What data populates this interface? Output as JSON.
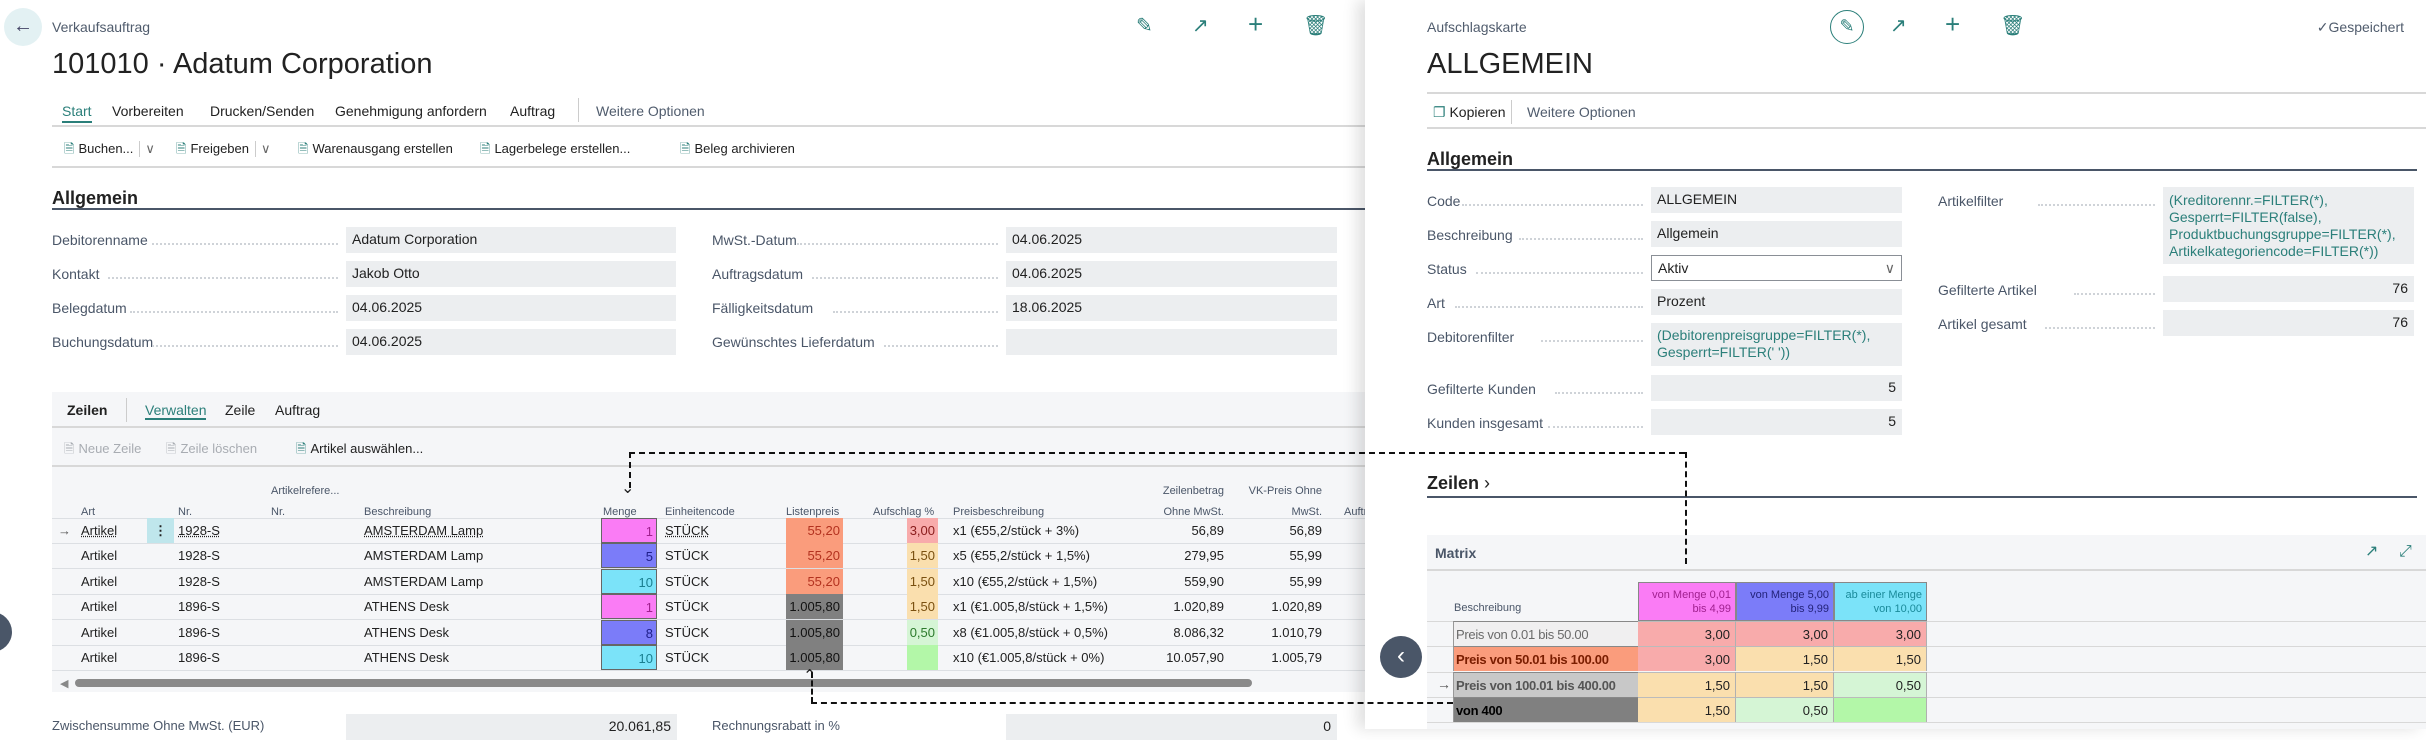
{
  "order": {
    "breadcrumb": "Verkaufsauftrag",
    "title": "101010 · Adatum Corporation",
    "header_icons": [
      "edit-icon",
      "share-icon",
      "add-icon",
      "delete-icon"
    ],
    "tabs": [
      "Start",
      "Vorbereiten",
      "Drucken/Senden",
      "Genehmigung anfordern",
      "Auftrag"
    ],
    "more_options": "Weitere Optionen",
    "actions": [
      "Buchen...",
      "Freigeben",
      "Warenausgang erstellen",
      "Lagerbelege erstellen...",
      "Beleg archivieren"
    ],
    "section": "Allgemein",
    "fields_col1": [
      {
        "label": "Debitorenname",
        "value": "Adatum Corporation"
      },
      {
        "label": "Kontakt",
        "value": "Jakob Otto"
      },
      {
        "label": "Belegdatum",
        "value": "04.06.2025"
      },
      {
        "label": "Buchungsdatum",
        "value": "04.06.2025"
      }
    ],
    "fields_col2": [
      {
        "label": "MwSt.-Datum",
        "value": "04.06.2025"
      },
      {
        "label": "Auftragsdatum",
        "value": "04.06.2025"
      },
      {
        "label": "Fälligkeitsdatum",
        "value": "18.06.2025"
      },
      {
        "label": "Gewünschtes Lieferdatum",
        "value": ""
      }
    ],
    "lines": {
      "title": "Zeilen",
      "tabs": [
        "Verwalten",
        "Zeile",
        "Auftrag"
      ],
      "actions": [
        "Neue Zeile",
        "Zeile löschen",
        "Artikel auswählen..."
      ],
      "headers": {
        "art": "Art",
        "nr": "Nr.",
        "ref1": "Artikelrefere...",
        "ref2": "Nr.",
        "beschreibung": "Beschreibung",
        "menge": "Menge",
        "einheit": "Einheitencode",
        "listenpreis": "Listenpreis",
        "aufschlag": "Aufschlag %",
        "preisbeschreibung": "Preisbeschreibung",
        "zeilenbetrag1": "Zeilenbetrag",
        "zeilenbetrag2": "Ohne MwSt.",
        "vk1": "VK-Preis Ohne",
        "vk2": "MwSt.",
        "auftrag": "Auftrag"
      },
      "rows": [
        {
          "art": "Artikel",
          "nr": "1928-S",
          "beschreibung": "AMSTERDAM Lamp",
          "menge": "1",
          "menge_color": "#fa7cf5",
          "menge_text": "#a0208f",
          "einheit": "STÜCK",
          "listenpreis": "55,20",
          "lp_color": "#fa9c7c",
          "lp_text": "#b3321f",
          "aufschlag": "3,00",
          "af_color": "#f8abab",
          "af_text": "#8a1c1c",
          "preisbeschreibung": "x1 (€55,2/stück + 3%)",
          "zeilenbetrag": "56,89",
          "vkpreis": "56,89",
          "selected": true
        },
        {
          "art": "Artikel",
          "nr": "1928-S",
          "beschreibung": "AMSTERDAM Lamp",
          "menge": "5",
          "menge_color": "#7b7cf9",
          "menge_text": "#1e1e8a",
          "einheit": "STÜCK",
          "listenpreis": "55,20",
          "lp_color": "#fa9c7c",
          "lp_text": "#b3321f",
          "aufschlag": "1,50",
          "af_color": "#fadfae",
          "af_text": "#7a5010",
          "preisbeschreibung": "x5 (€55,2/stück + 1,5%)",
          "zeilenbetrag": "279,95",
          "vkpreis": "55,99"
        },
        {
          "art": "Artikel",
          "nr": "1928-S",
          "beschreibung": "AMSTERDAM Lamp",
          "menge": "10",
          "menge_color": "#7be3f9",
          "menge_text": "#1a7f90",
          "einheit": "STÜCK",
          "listenpreis": "55,20",
          "lp_color": "#fa9c7c",
          "lp_text": "#b3321f",
          "aufschlag": "1,50",
          "af_color": "#fadfae",
          "af_text": "#7a5010",
          "preisbeschreibung": "x10 (€55,2/stück + 1,5%)",
          "zeilenbetrag": "559,90",
          "vkpreis": "55,99"
        },
        {
          "art": "Artikel",
          "nr": "1896-S",
          "beschreibung": "ATHENS Desk",
          "menge": "1",
          "menge_color": "#fa7cf5",
          "menge_text": "#a0208f",
          "einheit": "STÜCK",
          "listenpreis": "1.005,80",
          "lp_color": "#808080",
          "lp_text": "#111111",
          "aufschlag": "1,50",
          "af_color": "#fadfae",
          "af_text": "#7a5010",
          "preisbeschreibung": "x1 (€1.005,8/stück + 1,5%)",
          "zeilenbetrag": "1.020,89",
          "vkpreis": "1.020,89"
        },
        {
          "art": "Artikel",
          "nr": "1896-S",
          "beschreibung": "ATHENS Desk",
          "menge": "8",
          "menge_color": "#7b7cf9",
          "menge_text": "#1e1e8a",
          "einheit": "STÜCK",
          "listenpreis": "1.005,80",
          "lp_color": "#808080",
          "lp_text": "#111111",
          "aufschlag": "0,50",
          "af_color": "#d5f5d5",
          "af_text": "#2c7a2c",
          "preisbeschreibung": "x8 (€1.005,8/stück + 0,5%)",
          "zeilenbetrag": "8.086,32",
          "vkpreis": "1.010,79"
        },
        {
          "art": "Artikel",
          "nr": "1896-S",
          "beschreibung": "ATHENS Desk",
          "menge": "10",
          "menge_color": "#7be3f9",
          "menge_text": "#1a7f90",
          "einheit": "STÜCK",
          "listenpreis": "1.005,80",
          "lp_color": "#808080",
          "lp_text": "#111111",
          "aufschlag": "",
          "af_color": "#b3f7a8",
          "af_text": "#2c7a2c",
          "preisbeschreibung": "x10 (€1.005,8/stück + 0%)",
          "zeilenbetrag": "10.057,90",
          "vkpreis": "1.005,79"
        }
      ]
    },
    "totals": [
      {
        "label": "Zwischensumme Ohne MwSt. (EUR)",
        "value": "20.061,85"
      },
      {
        "label": "Rechnungsrabatt in %",
        "value": "0"
      }
    ]
  },
  "card": {
    "breadcrumb": "Aufschlagskarte",
    "title": "ALLGEMEIN",
    "saved": "Gespeichert",
    "copy": "Kopieren",
    "more_options": "Weitere Optionen",
    "section": "Allgemein",
    "fields_col1": [
      {
        "label": "Code",
        "value": "ALLGEMEIN"
      },
      {
        "label": "Beschreibung",
        "value": "Allgemein"
      },
      {
        "label": "Status",
        "value": "Aktiv"
      },
      {
        "label": "Art",
        "value": "Prozent"
      },
      {
        "label": "Debitorenfilter",
        "value": "(Debitorenpreisgruppe=FILTER(*), Gesperrt=FILTER(' '))"
      },
      {
        "label": "Gefilterte Kunden",
        "value": "5"
      },
      {
        "label": "Kunden insgesamt",
        "value": "5"
      }
    ],
    "fields_col2": [
      {
        "label": "Artikelfilter",
        "value": "(Kreditorennr.=FILTER(*), Gesperrt=FILTER(false), Produktbuchungsgruppe=FILTER(*), Artikelkategoriencode=FILTER(*))"
      },
      {
        "label": "Gefilterte Artikel",
        "value": "76"
      },
      {
        "label": "Artikel gesamt",
        "value": "76"
      }
    ],
    "lines_title": "Zeilen",
    "matrix": {
      "title": "Matrix",
      "row_header": "Beschreibung",
      "columns": [
        {
          "line1": "von Menge 0,01",
          "line2": "bis 4,99",
          "color": "#fa7cf5",
          "text": "#a0208f"
        },
        {
          "line1": "von Menge 5,00",
          "line2": "bis 9,99",
          "color": "#7b7cf9",
          "text": "#23237a"
        },
        {
          "line1": "ab einer Menge",
          "line2": "von 10,00",
          "color": "#7be3f9",
          "text": "#1a8a9a"
        }
      ],
      "rows": [
        {
          "label": "Preis von 0.01 bis 50.00",
          "bg": "#f0eff0",
          "fg": "#6a6a6a",
          "bold": false,
          "values": [
            "3,00",
            "3,00",
            "3,00"
          ],
          "colors": [
            "#f8abab",
            "#f8abab",
            "#f8abab"
          ]
        },
        {
          "label": "Preis von 50.01 bis 100.00",
          "bg": "#fa9c7c",
          "fg": "#7a1d00",
          "bold": true,
          "values": [
            "3,00",
            "1,50",
            "1,50"
          ],
          "colors": [
            "#f8abab",
            "#fadfae",
            "#fadfae"
          ]
        },
        {
          "label": "Preis von 100.01 bis 400.00",
          "bg": "#c8c8c8",
          "fg": "#555555",
          "bold": true,
          "values": [
            "1,50",
            "1,50",
            "0,50"
          ],
          "colors": [
            "#fadfae",
            "#fadfae",
            "#d5f5d5"
          ],
          "selected": true
        },
        {
          "label": "von 400",
          "bg": "#808080",
          "fg": "#000000",
          "bold": true,
          "values": [
            "1,50",
            "0,50",
            ""
          ],
          "colors": [
            "#fadfae",
            "#d5f5d5",
            "#b3f7a8"
          ]
        }
      ]
    }
  },
  "accent": "#2b7f7a"
}
